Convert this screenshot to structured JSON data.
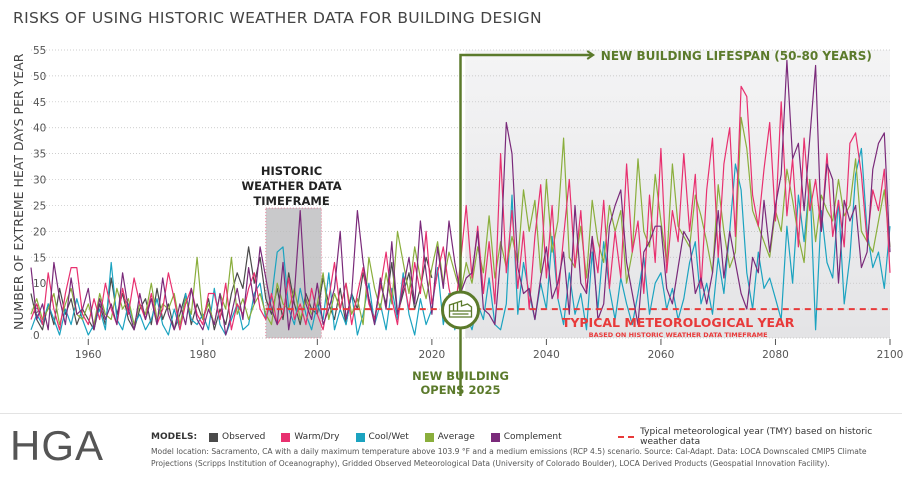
{
  "title": "RISKS OF USING HISTORIC WEATHER DATA FOR BUILDING DESIGN",
  "logo": "HGA",
  "legend": {
    "label": "MODELS:",
    "items": [
      {
        "name": "Observed",
        "color": "#4a4a4a"
      },
      {
        "name": "Warm/Dry",
        "color": "#e8306f"
      },
      {
        "name": "Cool/Wet",
        "color": "#1ba3c0"
      },
      {
        "name": "Average",
        "color": "#8aae3c"
      },
      {
        "name": "Complement",
        "color": "#7a2a7a"
      }
    ],
    "tmy_label": "Typical meteorological year (TMY) based on historic weather data",
    "tmy_color": "#e83a3a"
  },
  "note": "Model location: Sacramento, CA with a daily maximum temperature above 103.9 °F and a medium emissions (RCP 4.5) scenario. Source: Cal-Adapt. Data: LOCA Downscaled CMIP5 Climate Projections (Scripps Institution of Oceanography), Gridded Observed Meteorological Data (University of Colorado Boulder), LOCA Derived Products (Geospatial Innovation Facility).",
  "annotations": {
    "historic": [
      "HISTORIC",
      "WEATHER DATA",
      "TIMEFRAME"
    ],
    "historic_range": [
      1991,
      2000
    ],
    "lifespan": "NEW BUILDING LIFESPAN (50-80 YEARS)",
    "lifespan_range": [
      2026,
      2100
    ],
    "opens": [
      "NEW BUILDING",
      "OPENS 2025"
    ],
    "opens_year": 2025,
    "tmy_title": "TYPICAL METEOROLOGICAL YEAR",
    "tmy_sub": "BASED ON HISTORIC WEATHER DATA TIMEFRAME",
    "accent_color": "#5b7a2b",
    "building_icon": "building-icon"
  },
  "chart_data": {
    "type": "line",
    "title": "RISKS OF USING HISTORIC WEATHER DATA FOR BUILDING DESIGN",
    "xlabel": "",
    "ylabel": "NUMBER OF EXTREME HEAT DAYS PER YEAR",
    "xlim": [
      1950,
      2100
    ],
    "ylim": [
      0,
      55
    ],
    "xticks": [
      1960,
      1980,
      2000,
      2020,
      2040,
      2060,
      2080,
      2100
    ],
    "yticks": [
      0,
      5,
      10,
      15,
      20,
      25,
      30,
      35,
      40,
      45,
      50,
      55
    ],
    "grid": "horizontal dotted",
    "tmy_value": 5,
    "series": [
      {
        "name": "Observed",
        "color": "#4a4a4a",
        "start": 1950,
        "values": [
          8,
          3,
          1,
          6,
          2,
          9,
          4,
          7,
          2,
          5,
          3,
          1,
          6,
          2,
          11,
          4,
          8,
          3,
          1,
          5,
          7,
          2,
          9,
          3,
          6,
          1,
          4,
          8,
          2,
          6,
          3,
          7,
          1,
          5,
          2,
          8,
          12,
          9,
          17,
          10,
          15,
          7,
          4,
          9,
          3,
          12,
          6,
          2,
          8,
          5,
          4,
          11,
          6,
          3,
          9,
          2,
          8,
          5,
          12,
          7,
          3,
          10,
          6,
          14,
          4,
          8,
          12,
          5,
          9,
          15,
          11
        ]
      },
      {
        "name": "Warm/Dry",
        "color": "#e8306f",
        "start": 1950,
        "values": [
          3,
          6,
          2,
          12,
          5,
          1,
          8,
          13,
          13,
          4,
          2,
          7,
          3,
          10,
          5,
          2,
          9,
          4,
          11,
          6,
          3,
          8,
          2,
          5,
          12,
          7,
          1,
          6,
          9,
          4,
          2,
          8,
          8,
          3,
          10,
          1,
          6,
          4,
          9,
          12,
          5,
          3,
          8,
          2,
          4,
          11,
          3,
          6,
          2,
          9,
          4,
          1,
          7,
          14,
          5,
          10,
          2,
          8,
          13,
          6,
          3,
          9,
          16,
          7,
          2,
          11,
          5,
          14,
          8,
          20,
          6,
          12,
          17,
          9,
          4,
          14,
          25,
          11,
          21,
          8,
          18,
          6,
          35,
          12,
          24,
          9,
          20,
          5,
          19,
          29,
          11,
          25,
          7,
          19,
          30,
          13,
          24,
          8,
          19,
          12,
          26,
          9,
          20,
          11,
          33,
          16,
          22,
          8,
          27,
          14,
          36,
          12,
          24,
          18,
          35,
          20,
          31,
          9,
          28,
          38,
          15,
          33,
          40,
          19,
          48,
          46,
          27,
          21,
          32,
          41,
          22,
          45,
          23,
          34,
          17,
          38,
          24,
          30,
          20,
          35,
          19,
          26,
          17,
          37,
          39,
          31,
          18,
          28,
          24,
          32,
          12
        ]
      },
      {
        "name": "Cool/Wet",
        "color": "#1ba3c0",
        "start": 1950,
        "values": [
          1,
          4,
          2,
          6,
          3,
          0,
          5,
          2,
          7,
          3,
          0,
          2,
          5,
          1,
          14,
          3,
          1,
          6,
          2,
          4,
          1,
          3,
          7,
          2,
          0,
          5,
          1,
          8,
          3,
          2,
          4,
          1,
          9,
          2,
          0,
          3,
          6,
          1,
          2,
          8,
          10,
          3,
          7,
          16,
          17,
          5,
          2,
          9,
          4,
          1,
          6,
          3,
          12,
          1,
          5,
          2,
          8,
          0,
          4,
          10,
          2,
          6,
          1,
          9,
          3,
          12,
          4,
          0,
          7,
          2,
          5,
          13,
          2,
          8,
          1,
          9,
          4,
          1,
          6,
          3,
          11,
          2,
          1,
          6,
          27,
          4,
          14,
          8,
          3,
          10,
          5,
          19,
          7,
          2,
          12,
          4,
          8,
          1,
          16,
          5,
          18,
          9,
          3,
          11,
          6,
          2,
          8,
          15,
          4,
          10,
          12,
          5,
          9,
          3,
          7,
          14,
          18,
          6,
          10,
          4,
          15,
          8,
          20,
          33,
          28,
          12,
          5,
          16,
          9,
          11,
          7,
          3,
          21,
          10,
          27,
          18,
          30,
          1,
          24,
          14,
          11,
          26,
          6,
          15,
          31,
          36,
          20,
          13,
          16,
          9,
          21
        ]
      },
      {
        "name": "Average",
        "color": "#8aae3c",
        "start": 1950,
        "values": [
          4,
          7,
          3,
          5,
          8,
          2,
          6,
          9,
          4,
          3,
          6,
          2,
          8,
          4,
          3,
          9,
          5,
          7,
          2,
          6,
          4,
          10,
          3,
          6,
          5,
          8,
          2,
          7,
          4,
          15,
          3,
          6,
          2,
          8,
          5,
          15,
          4,
          7,
          3,
          6,
          8,
          4,
          2,
          10,
          6,
          5,
          9,
          3,
          7,
          4,
          6,
          12,
          3,
          8,
          5,
          10,
          4,
          7,
          2,
          15,
          9,
          5,
          12,
          6,
          20,
          14,
          8,
          17,
          11,
          7,
          13,
          18,
          10,
          16,
          12,
          8,
          14,
          10,
          17,
          12,
          23,
          11,
          18,
          13,
          19,
          14,
          28,
          20,
          26,
          12,
          30,
          16,
          22,
          38,
          15,
          13,
          21,
          11,
          26,
          18,
          14,
          25,
          20,
          24,
          10,
          16,
          34,
          20,
          17,
          31,
          22,
          14,
          33,
          21,
          19,
          17,
          27,
          23,
          18,
          12,
          29,
          20,
          13,
          16,
          42,
          36,
          24,
          21,
          18,
          15,
          24,
          20,
          32,
          26,
          19,
          14,
          30,
          18,
          27,
          24,
          22,
          30,
          23,
          25,
          34,
          20,
          18,
          16,
          22,
          28,
          17
        ]
      },
      {
        "name": "Complement",
        "color": "#7a2a7a",
        "start": 1950,
        "values": [
          13,
          3,
          6,
          1,
          14,
          7,
          2,
          11,
          4,
          5,
          9,
          1,
          7,
          3,
          6,
          2,
          12,
          5,
          1,
          8,
          3,
          7,
          2,
          11,
          4,
          1,
          6,
          2,
          9,
          3,
          1,
          5,
          2,
          8,
          0,
          4,
          9,
          3,
          13,
          6,
          17,
          11,
          5,
          2,
          14,
          1,
          8,
          24,
          6,
          3,
          10,
          2,
          5,
          9,
          20,
          3,
          8,
          24,
          14,
          7,
          2,
          11,
          5,
          18,
          4,
          9,
          15,
          6,
          22,
          12,
          4,
          17,
          9,
          22,
          14,
          8,
          11,
          12,
          20,
          5,
          4,
          2,
          15,
          41,
          35,
          13,
          8,
          9,
          3,
          11,
          17,
          7,
          10,
          16,
          4,
          25,
          10,
          8,
          19,
          3,
          6,
          21,
          25,
          28,
          14,
          8,
          2,
          16,
          18,
          21,
          21,
          9,
          6,
          13,
          20,
          18,
          8,
          11,
          6,
          12,
          24,
          11,
          20,
          14,
          8,
          5,
          15,
          12,
          26,
          16,
          25,
          31,
          53,
          34,
          37,
          24,
          38,
          52,
          20,
          33,
          30,
          10,
          26,
          22,
          25,
          13,
          16,
          32,
          37,
          39,
          16
        ]
      }
    ]
  }
}
